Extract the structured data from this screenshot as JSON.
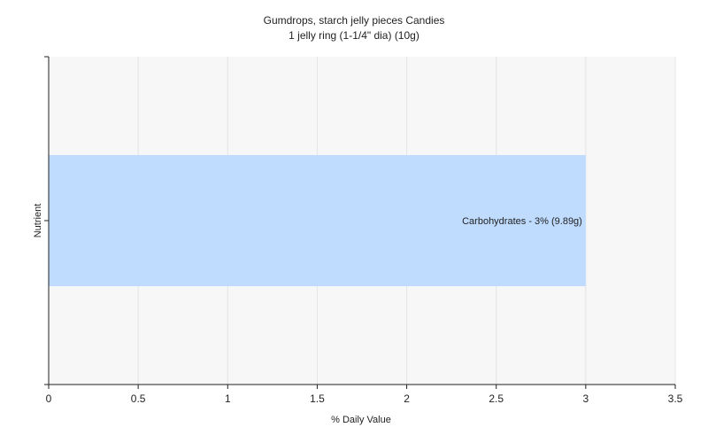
{
  "chart_data": {
    "type": "bar",
    "orientation": "horizontal",
    "title": "Gumdrops, starch jelly pieces Candies",
    "subtitle": "1 jelly ring (1-1/4\" dia) (10g)",
    "xlabel": "% Daily Value",
    "ylabel": "Nutrient",
    "xlim": [
      0,
      3.5
    ],
    "xticks": [
      "0",
      "0.5",
      "1",
      "1.5",
      "2",
      "2.5",
      "3",
      "3.5"
    ],
    "grid": true,
    "legend": "none",
    "categories": [
      "Carbohydrates"
    ],
    "values": [
      3
    ],
    "data_labels": [
      "Carbohydrates - 3% (9.89g)"
    ],
    "colors": {
      "bar": "#bfdcff",
      "plot_background": "#f7f7f7",
      "grid": "#e4e4e4",
      "axis": "#222222"
    }
  }
}
